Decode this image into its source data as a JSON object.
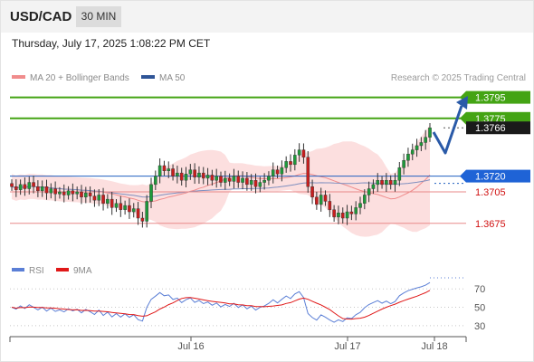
{
  "header": {
    "symbol": "USD/CAD",
    "timeframe": "30 MIN"
  },
  "datetime": "Thursday, July 17, 2025 1:08:22 PM CET",
  "legend": {
    "bollinger": "MA 20 + Bollinger Bands",
    "ma50": "MA 50",
    "bollinger_color": "#f08c8c",
    "ma50_color": "#2f5597"
  },
  "research": "Research © 2025 Trading Central",
  "rsi_legend": {
    "rsi": "RSI",
    "ma": "9MA",
    "rsi_color": "#5b7fd6",
    "ma_color": "#e01818"
  },
  "chart_data": [
    {
      "type": "candlestick",
      "instrument": "USD/CAD",
      "ylim": [
        1.3655,
        1.3805
      ],
      "x_ticks": [
        "Jul 16",
        "Jul 17",
        "Jul 18"
      ],
      "levels": [
        {
          "label": "1.3795",
          "value": 1.3795,
          "style": "resistance"
        },
        {
          "label": "1.3775",
          "value": 1.3775,
          "style": "resistance"
        },
        {
          "label": "1.3766",
          "value": 1.3766,
          "style": "last"
        },
        {
          "label": "1.3720",
          "value": 1.372,
          "style": "pivot"
        },
        {
          "label": "1.3705",
          "value": 1.3705,
          "style": "support"
        },
        {
          "label": "1.3675",
          "value": 1.3675,
          "style": "support"
        }
      ],
      "close": [
        1.371,
        1.3707,
        1.3712,
        1.3708,
        1.3714,
        1.371,
        1.3706,
        1.371,
        1.3704,
        1.3708,
        1.3703,
        1.3705,
        1.3702,
        1.3706,
        1.3703,
        1.3705,
        1.37,
        1.3704,
        1.3701,
        1.3697,
        1.3702,
        1.3694,
        1.3698,
        1.369,
        1.3694,
        1.3688,
        1.3692,
        1.3686,
        1.3689,
        1.368,
        1.3677,
        1.3696,
        1.3712,
        1.372,
        1.373,
        1.3725,
        1.3727,
        1.372,
        1.3723,
        1.3716,
        1.3722,
        1.3726,
        1.3719,
        1.3723,
        1.3718,
        1.3721,
        1.3716,
        1.372,
        1.3714,
        1.3718,
        1.3715,
        1.372,
        1.3714,
        1.3718,
        1.3712,
        1.3716,
        1.371,
        1.3714,
        1.3716,
        1.372,
        1.3726,
        1.3722,
        1.3728,
        1.3734,
        1.3731,
        1.374,
        1.3745,
        1.3738,
        1.371,
        1.37,
        1.3693,
        1.3702,
        1.3696,
        1.3688,
        1.3681,
        1.3685,
        1.368,
        1.3686,
        1.3684,
        1.369,
        1.3694,
        1.3702,
        1.3708,
        1.3712,
        1.3716,
        1.3712,
        1.3716,
        1.3712,
        1.3716,
        1.3728,
        1.3735,
        1.3741,
        1.3745,
        1.3749,
        1.3752,
        1.3757,
        1.3766
      ],
      "series": [
        {
          "name": "MA 20 + Bollinger Bands",
          "color": "#f08c8c"
        },
        {
          "name": "MA 50",
          "color": "#2f5597"
        }
      ]
    },
    {
      "type": "line",
      "x_ticks": [
        "Jul 16",
        "Jul 17",
        "Jul 18"
      ],
      "ylim": [
        20,
        85
      ],
      "y_ticks": [
        70,
        50,
        30
      ],
      "series": [
        {
          "name": "RSI",
          "color": "#5b7fd6"
        },
        {
          "name": "9MA",
          "color": "#e01818"
        }
      ]
    }
  ]
}
